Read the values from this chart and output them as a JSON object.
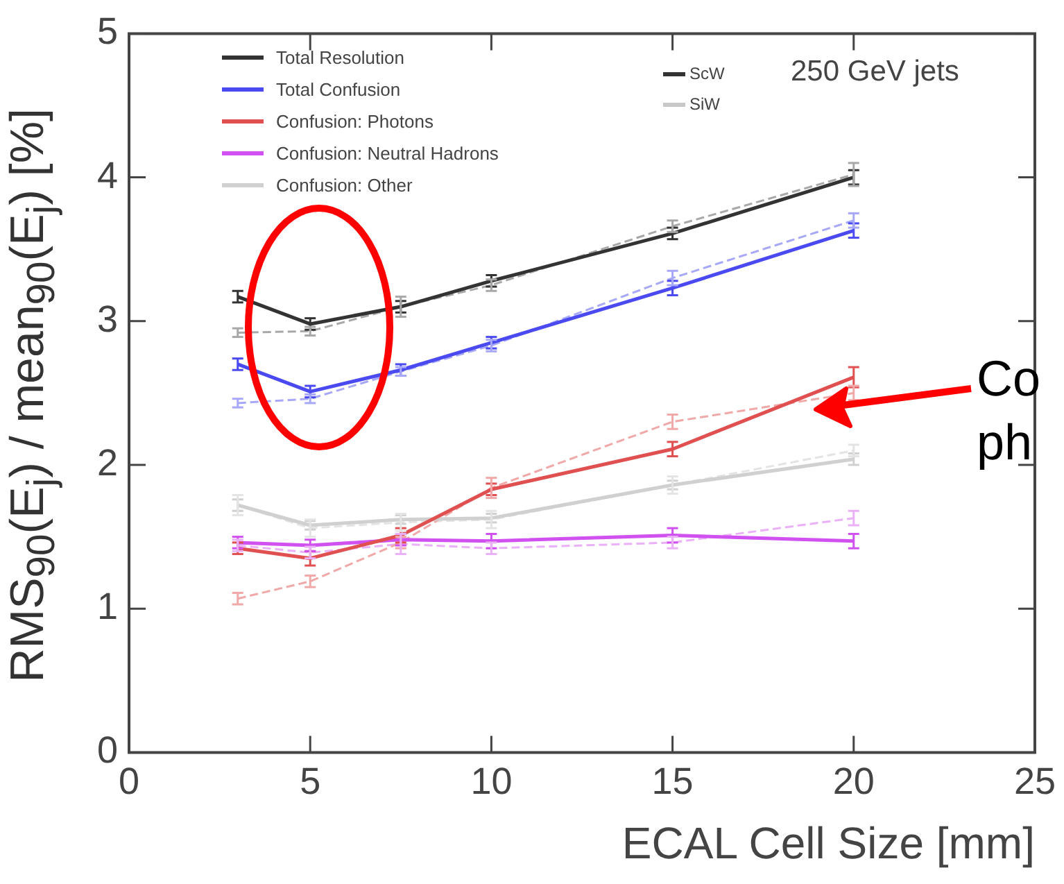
{
  "chart_data": {
    "type": "line",
    "xlabel": "ECAL Cell Size [mm]",
    "ylabel": "RMS$_{90}$(E$_{j}$) / mean$_{90}$(E$_{j}$) [%]",
    "x": [
      3,
      5,
      7.5,
      10,
      15,
      20
    ],
    "xlim": [
      0,
      25
    ],
    "xticks": [
      0,
      5,
      10,
      15,
      20,
      25
    ],
    "ylim": [
      0,
      5
    ],
    "yticks": [
      0,
      1,
      2,
      3,
      4,
      5
    ],
    "grid": false,
    "legend": "top left",
    "marker": "none",
    "annotations": [
      "ScW",
      "SiW",
      "250 GeV jets",
      "Co",
      "ph"
    ],
    "series": [
      {
        "name": "Total Resolution",
        "color": "#333333",
        "line_style": "solid",
        "values": [
          3.17,
          2.98,
          3.1,
          3.28,
          3.61,
          4.0
        ],
        "errors": [
          0.04,
          0.04,
          0.04,
          0.04,
          0.04,
          0.05
        ]
      },
      {
        "name": "Total Confusion",
        "color": "#4a4af0",
        "line_style": "solid",
        "values": [
          2.7,
          2.51,
          2.66,
          2.85,
          3.23,
          3.63
        ],
        "errors": [
          0.04,
          0.04,
          0.04,
          0.04,
          0.05,
          0.05
        ]
      },
      {
        "name": "Confusion: Photons",
        "color": "#e05050",
        "line_style": "solid",
        "values": [
          1.42,
          1.35,
          1.51,
          1.83,
          2.11,
          2.61
        ],
        "errors": [
          0.04,
          0.05,
          0.05,
          0.04,
          0.05,
          0.07
        ]
      },
      {
        "name": "Confusion: Neutral Hadrons",
        "color": "#d050f0",
        "line_style": "solid",
        "values": [
          1.46,
          1.44,
          1.48,
          1.47,
          1.51,
          1.47
        ],
        "errors": [
          0.04,
          0.04,
          0.04,
          0.05,
          0.05,
          0.05
        ]
      },
      {
        "name": "Confusion: Other",
        "color": "#d0d0d0",
        "line_style": "solid",
        "values": [
          1.72,
          1.58,
          1.62,
          1.63,
          1.86,
          2.04
        ],
        "errors": [
          0.04,
          0.03,
          0.03,
          0.03,
          0.03,
          0.04
        ]
      },
      {
        "color": "#a8a8a8",
        "line_style": "dashed",
        "values": [
          2.92,
          2.93,
          3.1,
          3.25,
          3.66,
          4.02
        ],
        "errors": [
          0.03,
          0.03,
          0.07,
          0.04,
          0.04,
          0.08
        ]
      },
      {
        "color": "#a8a8f8",
        "line_style": "dashed",
        "values": [
          2.43,
          2.46,
          2.65,
          2.83,
          3.3,
          3.7
        ],
        "errors": [
          0.03,
          0.03,
          0.03,
          0.04,
          0.05,
          0.05
        ]
      },
      {
        "color": "#f0a8a8",
        "line_style": "dashed",
        "values": [
          1.07,
          1.19,
          1.46,
          1.84,
          2.3,
          2.5
        ],
        "errors": [
          0.04,
          0.04,
          0.04,
          0.07,
          0.05,
          0.05
        ]
      },
      {
        "color": "#eab0f8",
        "line_style": "dashed",
        "values": [
          1.44,
          1.39,
          1.45,
          1.42,
          1.46,
          1.63
        ],
        "errors": [
          0.04,
          0.04,
          0.07,
          0.04,
          0.04,
          0.05
        ]
      },
      {
        "color": "#e4e4e4",
        "line_style": "dashed",
        "values": [
          1.72,
          1.56,
          1.6,
          1.62,
          1.86,
          2.1
        ],
        "errors": [
          0.07,
          0.06,
          0.06,
          0.06,
          0.06,
          0.04
        ]
      }
    ]
  }
}
